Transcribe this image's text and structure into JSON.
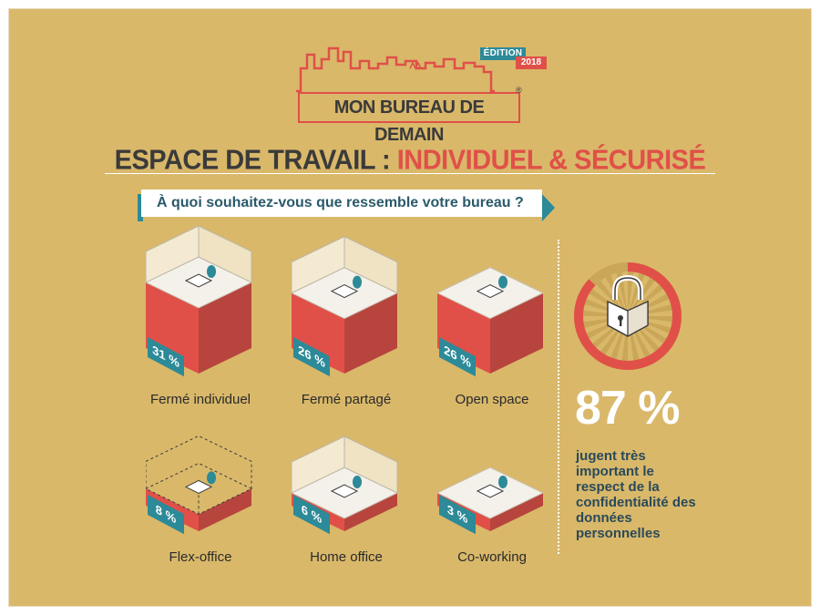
{
  "header": {
    "edition_label": "ÉDITION",
    "edition_year": "2018",
    "brand": "MON BUREAU DE DEMAIN",
    "registered_mark": "®"
  },
  "section": {
    "title_part1": "ESPACE DE TRAVAIL :",
    "title_part2": "INDIVIDUEL & SÉCURISÉ"
  },
  "question": "À quoi souhaitez-vous que ressemble votre bureau ?",
  "colors": {
    "background": "#d9b86a",
    "red": "#e05048",
    "teal": "#2d8a98"
  },
  "chart_data": {
    "type": "bar",
    "categories": [
      "Fermé individuel",
      "Fermé partagé",
      "Open space",
      "Flex-office",
      "Home office",
      "Co-working"
    ],
    "values": [
      31,
      26,
      26,
      8,
      6,
      3
    ],
    "value_labels": [
      "31 %",
      "26 %",
      "26 %",
      "8 %",
      "6 %",
      "3 %"
    ],
    "unit": "%"
  },
  "highlight": {
    "value": 87,
    "value_label": "87 %",
    "caption": "jugent très important le respect de la confidentialité des données personnelles",
    "icon": "padlock-icon"
  }
}
